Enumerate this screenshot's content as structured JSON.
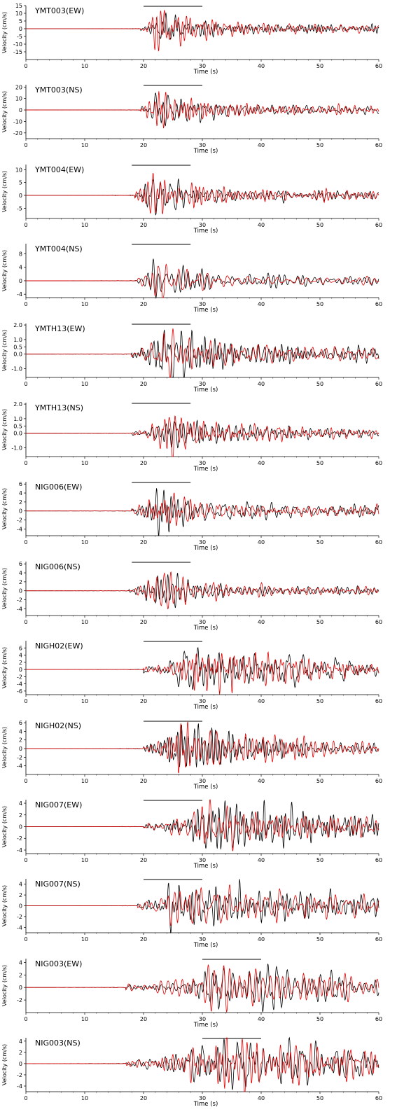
{
  "colors": {
    "observed": "#000000",
    "synthetic": "#e00000"
  },
  "chart_data": [
    {
      "type": "line",
      "station_label": "YMT003(EW)",
      "xlabel": "Time (s)",
      "ylabel": "Velocity (cm/s)",
      "xlim": [
        0,
        60
      ],
      "ylim": [
        -20,
        15
      ],
      "xticks": [
        0,
        10,
        20,
        30,
        40,
        50,
        60
      ],
      "yticks": [
        15,
        10,
        5,
        0,
        -5,
        -10,
        -15
      ],
      "window": [
        20,
        30
      ],
      "y_scale": 14,
      "seed": 11,
      "onset": 19.5,
      "peak": 22.2,
      "decay": 7
    },
    {
      "type": "line",
      "station_label": "YMT003(NS)",
      "xlabel": "Time (s)",
      "ylabel": "Velocity (cm/s)",
      "xlim": [
        0,
        60
      ],
      "ylim": [
        -25,
        22
      ],
      "xticks": [
        0,
        10,
        20,
        30,
        40,
        50,
        60
      ],
      "yticks": [
        20,
        10,
        0,
        -10,
        -20
      ],
      "window": [
        20,
        30
      ],
      "y_scale": 18,
      "seed": 23,
      "onset": 19.5,
      "peak": 22.6,
      "decay": 6
    },
    {
      "type": "line",
      "station_label": "YMT004(EW)",
      "xlabel": "Time (s)",
      "ylabel": "Velocity (cm/s)",
      "xlim": [
        0,
        60
      ],
      "ylim": [
        -9,
        12
      ],
      "xticks": [
        0,
        10,
        20,
        30,
        40,
        50,
        60
      ],
      "yticks": [
        10,
        5,
        0,
        -5
      ],
      "window": [
        18,
        28
      ],
      "y_scale": 10,
      "seed": 37,
      "onset": 18.5,
      "peak": 21.5,
      "decay": 5
    },
    {
      "type": "line",
      "station_label": "YMT004(NS)",
      "xlabel": "Time (s)",
      "ylabel": "Velocity (cm/s)",
      "xlim": [
        0,
        60
      ],
      "ylim": [
        -5,
        11
      ],
      "xticks": [
        0,
        10,
        20,
        30,
        40,
        50,
        60
      ],
      "yticks": [
        8,
        4,
        0,
        -4
      ],
      "window": [
        18,
        28
      ],
      "y_scale": 7,
      "seed": 41,
      "onset": 19,
      "peak": 21.8,
      "decay": 9
    },
    {
      "type": "line",
      "station_label": "YMTH13(EW)",
      "xlabel": "Time (s)",
      "ylabel": "Velocity (cm/s)",
      "xlim": [
        0,
        60
      ],
      "ylim": [
        -1.6,
        2.1
      ],
      "xticks": [
        0,
        10,
        20,
        30,
        40,
        50,
        60
      ],
      "yticks": [
        2.0,
        1.0,
        0.5,
        0.0,
        -1.0
      ],
      "window": [
        18,
        28
      ],
      "y_scale": 1.7,
      "seed": 53,
      "onset": 18,
      "peak": 24.5,
      "decay": 10
    },
    {
      "type": "line",
      "station_label": "YMTH13(NS)",
      "xlabel": "Time (s)",
      "ylabel": "Velocity (cm/s)",
      "xlim": [
        0,
        60
      ],
      "ylim": [
        -1.6,
        2.1
      ],
      "xticks": [
        0,
        10,
        20,
        30,
        40,
        50,
        60
      ],
      "yticks": [
        2.0,
        1.0,
        0.5,
        0.0,
        -1.0
      ],
      "window": [
        18,
        28
      ],
      "y_scale": 1.2,
      "seed": 67,
      "onset": 18,
      "peak": 24.5,
      "decay": 11
    },
    {
      "type": "line",
      "station_label": "NIG006(EW)",
      "xlabel": "Time (s)",
      "ylabel": "Velocity (cm/s)",
      "xlim": [
        0,
        60
      ],
      "ylim": [
        -5.5,
        6.5
      ],
      "xticks": [
        0,
        10,
        20,
        30,
        40,
        50,
        60
      ],
      "yticks": [
        6,
        4,
        2,
        0,
        -2,
        -4
      ],
      "window": [
        18,
        28
      ],
      "y_scale": 5.5,
      "seed": 71,
      "onset": 18,
      "peak": 22.5,
      "decay": 5
    },
    {
      "type": "line",
      "station_label": "NIG006(NS)",
      "xlabel": "Time (s)",
      "ylabel": "Velocity (cm/s)",
      "xlim": [
        0,
        60
      ],
      "ylim": [
        -5.5,
        6.5
      ],
      "xticks": [
        0,
        10,
        20,
        30,
        40,
        50,
        60
      ],
      "yticks": [
        6,
        4,
        2,
        0,
        -2,
        -4
      ],
      "window": [
        18,
        28
      ],
      "y_scale": 4.2,
      "seed": 83,
      "onset": 17.5,
      "peak": 22.5,
      "decay": 6
    },
    {
      "type": "line",
      "station_label": "NIGH02(EW)",
      "xlabel": "Time (s)",
      "ylabel": "Velocity (cm/s)",
      "xlim": [
        0,
        60
      ],
      "ylim": [
        -7,
        8
      ],
      "xticks": [
        0,
        10,
        20,
        30,
        40,
        50,
        60
      ],
      "yticks": [
        6,
        4,
        2,
        0,
        -2,
        -4,
        -6
      ],
      "window": [
        20,
        30
      ],
      "y_scale": 6.3,
      "seed": 97,
      "onset": 20,
      "peak": 29.5,
      "decay": 14
    },
    {
      "type": "line",
      "station_label": "NIGH02(NS)",
      "xlabel": "Time (s)",
      "ylabel": "Velocity (cm/s)",
      "xlim": [
        0,
        60
      ],
      "ylim": [
        -6,
        6.5
      ],
      "xticks": [
        0,
        10,
        20,
        30,
        40,
        50,
        60
      ],
      "yticks": [
        6,
        4,
        2,
        0,
        -2,
        -4
      ],
      "window": [
        20,
        30
      ],
      "y_scale": 5,
      "seed": 101,
      "onset": 20,
      "peak": 26.5,
      "decay": 14
    },
    {
      "type": "line",
      "station_label": "NIG007(EW)",
      "xlabel": "Time (s)",
      "ylabel": "Velocity (cm/s)",
      "xlim": [
        0,
        60
      ],
      "ylim": [
        -4.6,
        4.6
      ],
      "xticks": [
        0,
        10,
        20,
        30,
        40,
        50,
        60
      ],
      "yticks": [
        4,
        2,
        0,
        -2,
        -4
      ],
      "window": [
        20,
        30
      ],
      "y_scale": 3.8,
      "seed": 113,
      "onset": 20,
      "peak": 31,
      "decay": 30
    },
    {
      "type": "line",
      "station_label": "NIG007(NS)",
      "xlabel": "Time (s)",
      "ylabel": "Velocity (cm/s)",
      "xlim": [
        0,
        60
      ],
      "ylim": [
        -5,
        5
      ],
      "xticks": [
        0,
        10,
        20,
        30,
        40,
        50,
        60
      ],
      "yticks": [
        4,
        2,
        0,
        -2,
        -4
      ],
      "window": [
        20,
        30
      ],
      "y_scale": 3.8,
      "seed": 127,
      "onset": 19,
      "peak": 25,
      "decay": 30
    },
    {
      "type": "line",
      "station_label": "NIG003(EW)",
      "xlabel": "Time (s)",
      "ylabel": "Velocity (cm/s)",
      "xlim": [
        0,
        60
      ],
      "ylim": [
        -4,
        4.6
      ],
      "xticks": [
        0,
        10,
        20,
        30,
        40,
        50,
        60
      ],
      "yticks": [
        4,
        2,
        0,
        -2
      ],
      "window": [
        30,
        40
      ],
      "y_scale": 3.8,
      "seed": 131,
      "onset": 17,
      "peak": 34,
      "decay": 25
    },
    {
      "type": "line",
      "station_label": "NIG003(NS)",
      "xlabel": "Time (s)",
      "ylabel": "Velocity (cm/s)",
      "xlim": [
        0,
        60
      ],
      "ylim": [
        -5,
        4.6
      ],
      "xticks": [
        0,
        10,
        20,
        30,
        40,
        50,
        60
      ],
      "yticks": [
        4,
        2,
        0,
        -2,
        -4
      ],
      "window": [
        30,
        40
      ],
      "y_scale": 4,
      "seed": 149,
      "onset": 17,
      "peak": 34,
      "decay": 20
    }
  ]
}
